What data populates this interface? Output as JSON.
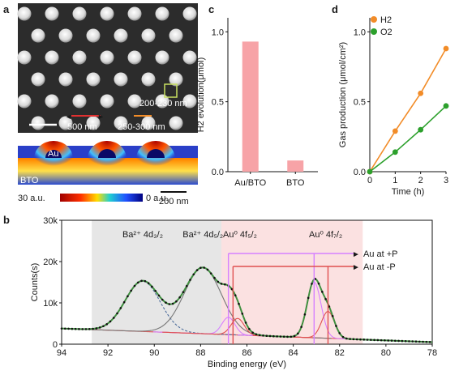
{
  "panels": {
    "a": {
      "label": "a",
      "sem_labels": [
        "500 nm",
        "250-300 nm",
        "200-230 nm"
      ],
      "cross_section": {
        "metal": "Au",
        "substrate": "BTO"
      },
      "colorbar": {
        "low": "30 a.u.",
        "high": "0 a.u."
      },
      "scalebar": "200 nm"
    },
    "b": {
      "label": "b"
    },
    "c": {
      "label": "c"
    },
    "d": {
      "label": "d"
    }
  },
  "colors": {
    "bar_c": "#f7a3a7",
    "h2": "#f28c28",
    "o2": "#2ca02c",
    "shade_gray": "#e3e3e3",
    "shade_pink": "#fbdede",
    "au_plus_p": "#d680ff",
    "au_minus_p": "#e05050",
    "raw_data": "#111111",
    "fit_envelope": "#3f8f3f",
    "ba_32": "#4a6a9a",
    "ba_52": "#777777",
    "background": "#e06060"
  },
  "chart_data": [
    {
      "id": "c",
      "type": "bar",
      "categories": [
        "Au/BTO",
        "BTO"
      ],
      "values": [
        0.93,
        0.08
      ],
      "xlabel": "",
      "ylabel": "H2 evolution(μmol)",
      "ylim": [
        0,
        1.1
      ],
      "yticks": [
        0.0,
        0.5,
        1.0
      ],
      "yticklabels": [
        "0.0",
        "0.5",
        "1.0"
      ]
    },
    {
      "id": "d",
      "type": "line",
      "x": [
        0,
        1,
        2,
        3
      ],
      "series": [
        {
          "name": "H2",
          "values": [
            0.0,
            0.29,
            0.56,
            0.88
          ]
        },
        {
          "name": "O2",
          "values": [
            0.0,
            0.14,
            0.3,
            0.47
          ]
        }
      ],
      "xlabel": "Time (h)",
      "ylabel": "Gas production (μmol/cm²)",
      "xlim": [
        0,
        3
      ],
      "ylim": [
        0,
        1.1
      ],
      "xticks": [
        0,
        1,
        2,
        3
      ],
      "yticks": [
        0.0,
        0.5,
        1.0
      ],
      "yticklabels": [
        "0.0",
        "0.5",
        "1.0"
      ],
      "legend": "top-left",
      "grid": false
    },
    {
      "id": "b",
      "type": "line",
      "xlabel": "Binding energy (eV)",
      "ylabel": "Counts(s)",
      "xlim": [
        94,
        78
      ],
      "ylim": [
        0,
        30000
      ],
      "xticks": [
        94,
        92,
        90,
        88,
        86,
        84,
        82,
        80,
        78
      ],
      "yticks": [
        0,
        10000,
        20000,
        30000
      ],
      "yticklabels": [
        "0",
        "10k",
        "20k",
        "30k"
      ],
      "shaded_regions": [
        {
          "from": 92.7,
          "to": 87.1,
          "color": "gray"
        },
        {
          "from": 87.1,
          "to": 81.0,
          "color": "pink"
        }
      ],
      "annotations": [
        {
          "text": "Ba²⁺ 4d₃/₂",
          "x": 90.5
        },
        {
          "text": "Ba²⁺ 4d₅/₂",
          "x": 87.9
        },
        {
          "text": "Au⁰ 4f₅/₂",
          "x": 86.3
        },
        {
          "text": "Au⁰ 4f₇/₂",
          "x": 82.6
        }
      ],
      "guide_lines": [
        {
          "name": "Au at +P",
          "x1": 86.8,
          "x2": 83.1
        },
        {
          "name": "Au at -P",
          "x1": 86.6,
          "x2": 82.5
        }
      ],
      "peaks": [
        {
          "name": "Ba 4d3/2",
          "center": 90.5,
          "height": 12200,
          "sigma": 0.75
        },
        {
          "name": "Ba 4d5/2",
          "center": 87.9,
          "height": 16000,
          "sigma": 0.8
        },
        {
          "name": "Au 4f5/2 (+P)",
          "center": 86.8,
          "height": 4200,
          "sigma": 0.28
        },
        {
          "name": "Au 4f5/2 (-P)",
          "center": 86.4,
          "height": 4000,
          "sigma": 0.28
        },
        {
          "name": "Au 4f7/2 (+P)",
          "center": 83.1,
          "height": 13500,
          "sigma": 0.3
        },
        {
          "name": "Au 4f7/2 (-P)",
          "center": 82.5,
          "height": 6500,
          "sigma": 0.28
        }
      ],
      "background": {
        "left": 3800,
        "right": 500
      }
    }
  ]
}
